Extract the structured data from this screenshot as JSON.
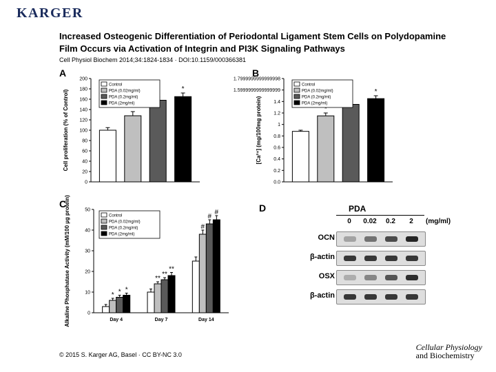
{
  "brand": "KARGER",
  "title": "Increased Osteogenic Differentiation of Periodontal Ligament Stem Cells on Polydopamine Film Occurs via Activation of Integrin and PI3K Signaling Pathways",
  "citation": "Cell Physiol Biochem 2014;34:1824-1834 · DOI:10.1159/000366381",
  "footer": "© 2015 S. Karger AG, Basel · CC BY-NC 3.0",
  "journal_logo": {
    "line1": "Cellular Physiology",
    "line2": "and Biochemistry"
  },
  "legend": {
    "items": [
      {
        "color": "#ffffff",
        "label": "Control"
      },
      {
        "color": "#bfbfbf",
        "label": "PDA (0.02mg/ml)"
      },
      {
        "color": "#5a5a5a",
        "label": "PDA (0.2mg/ml)"
      },
      {
        "color": "#000000",
        "label": "PDA (2mg/ml)"
      }
    ]
  },
  "panelA": {
    "type": "bar",
    "ylabel": "Cell proliferation (% of Control)",
    "ylim": [
      0,
      200
    ],
    "ytick_step": 20,
    "values": [
      100,
      128,
      158,
      165
    ],
    "errors": [
      5,
      8,
      6,
      7
    ],
    "sig": [
      "",
      "*",
      "*",
      "*"
    ],
    "bar_colors": [
      "#ffffff",
      "#bfbfbf",
      "#5a5a5a",
      "#000000"
    ]
  },
  "panelB": {
    "type": "bar",
    "ylabel": "[Ca²⁺]\n(mg/100mg protein)",
    "ylim": [
      0,
      1.8
    ],
    "ytick_step": 0.2,
    "values": [
      0.88,
      1.15,
      1.35,
      1.45
    ],
    "errors": [
      0.02,
      0.05,
      0.05,
      0.05
    ],
    "sig": [
      "",
      "*",
      "*",
      "*"
    ],
    "bar_colors": [
      "#ffffff",
      "#bfbfbf",
      "#5a5a5a",
      "#000000"
    ]
  },
  "panelC": {
    "type": "grouped-bar",
    "ylabel": "Alkaline Phosphatase Activity\n(mM/100 µg protein)",
    "ylim": [
      0,
      50
    ],
    "ytick_step": 10,
    "groups": [
      "Day 4",
      "Day 7",
      "Day 14"
    ],
    "series_colors": [
      "#ffffff",
      "#bfbfbf",
      "#5a5a5a",
      "#000000"
    ],
    "values": [
      [
        3,
        6,
        7.5,
        8.5
      ],
      [
        10,
        14,
        16,
        18
      ],
      [
        25,
        38,
        43,
        45
      ]
    ],
    "errors": [
      [
        1,
        1,
        1,
        1
      ],
      [
        1.5,
        1,
        1,
        1.5
      ],
      [
        2,
        2,
        2,
        2
      ]
    ],
    "sig": [
      [
        "",
        "*",
        "*",
        "*"
      ],
      [
        "",
        "**",
        "**",
        "**"
      ],
      [
        "",
        "#",
        "#",
        "#"
      ]
    ]
  },
  "panelD": {
    "type": "western-blot",
    "heading": "PDA",
    "concentrations": [
      "0",
      "0.02",
      "0.2",
      "2"
    ],
    "unit": "(mg/ml)",
    "rows": [
      {
        "label": "OCN",
        "intensities": [
          0.3,
          0.55,
          0.75,
          0.95
        ]
      },
      {
        "label": "β-actin",
        "intensities": [
          0.85,
          0.85,
          0.85,
          0.85
        ]
      },
      {
        "label": "OSX",
        "intensities": [
          0.25,
          0.45,
          0.7,
          0.9
        ]
      },
      {
        "label": "β-actin",
        "intensities": [
          0.85,
          0.85,
          0.85,
          0.85
        ]
      }
    ],
    "band_color": "#1a1a1a",
    "lane_background": "#dedede"
  }
}
